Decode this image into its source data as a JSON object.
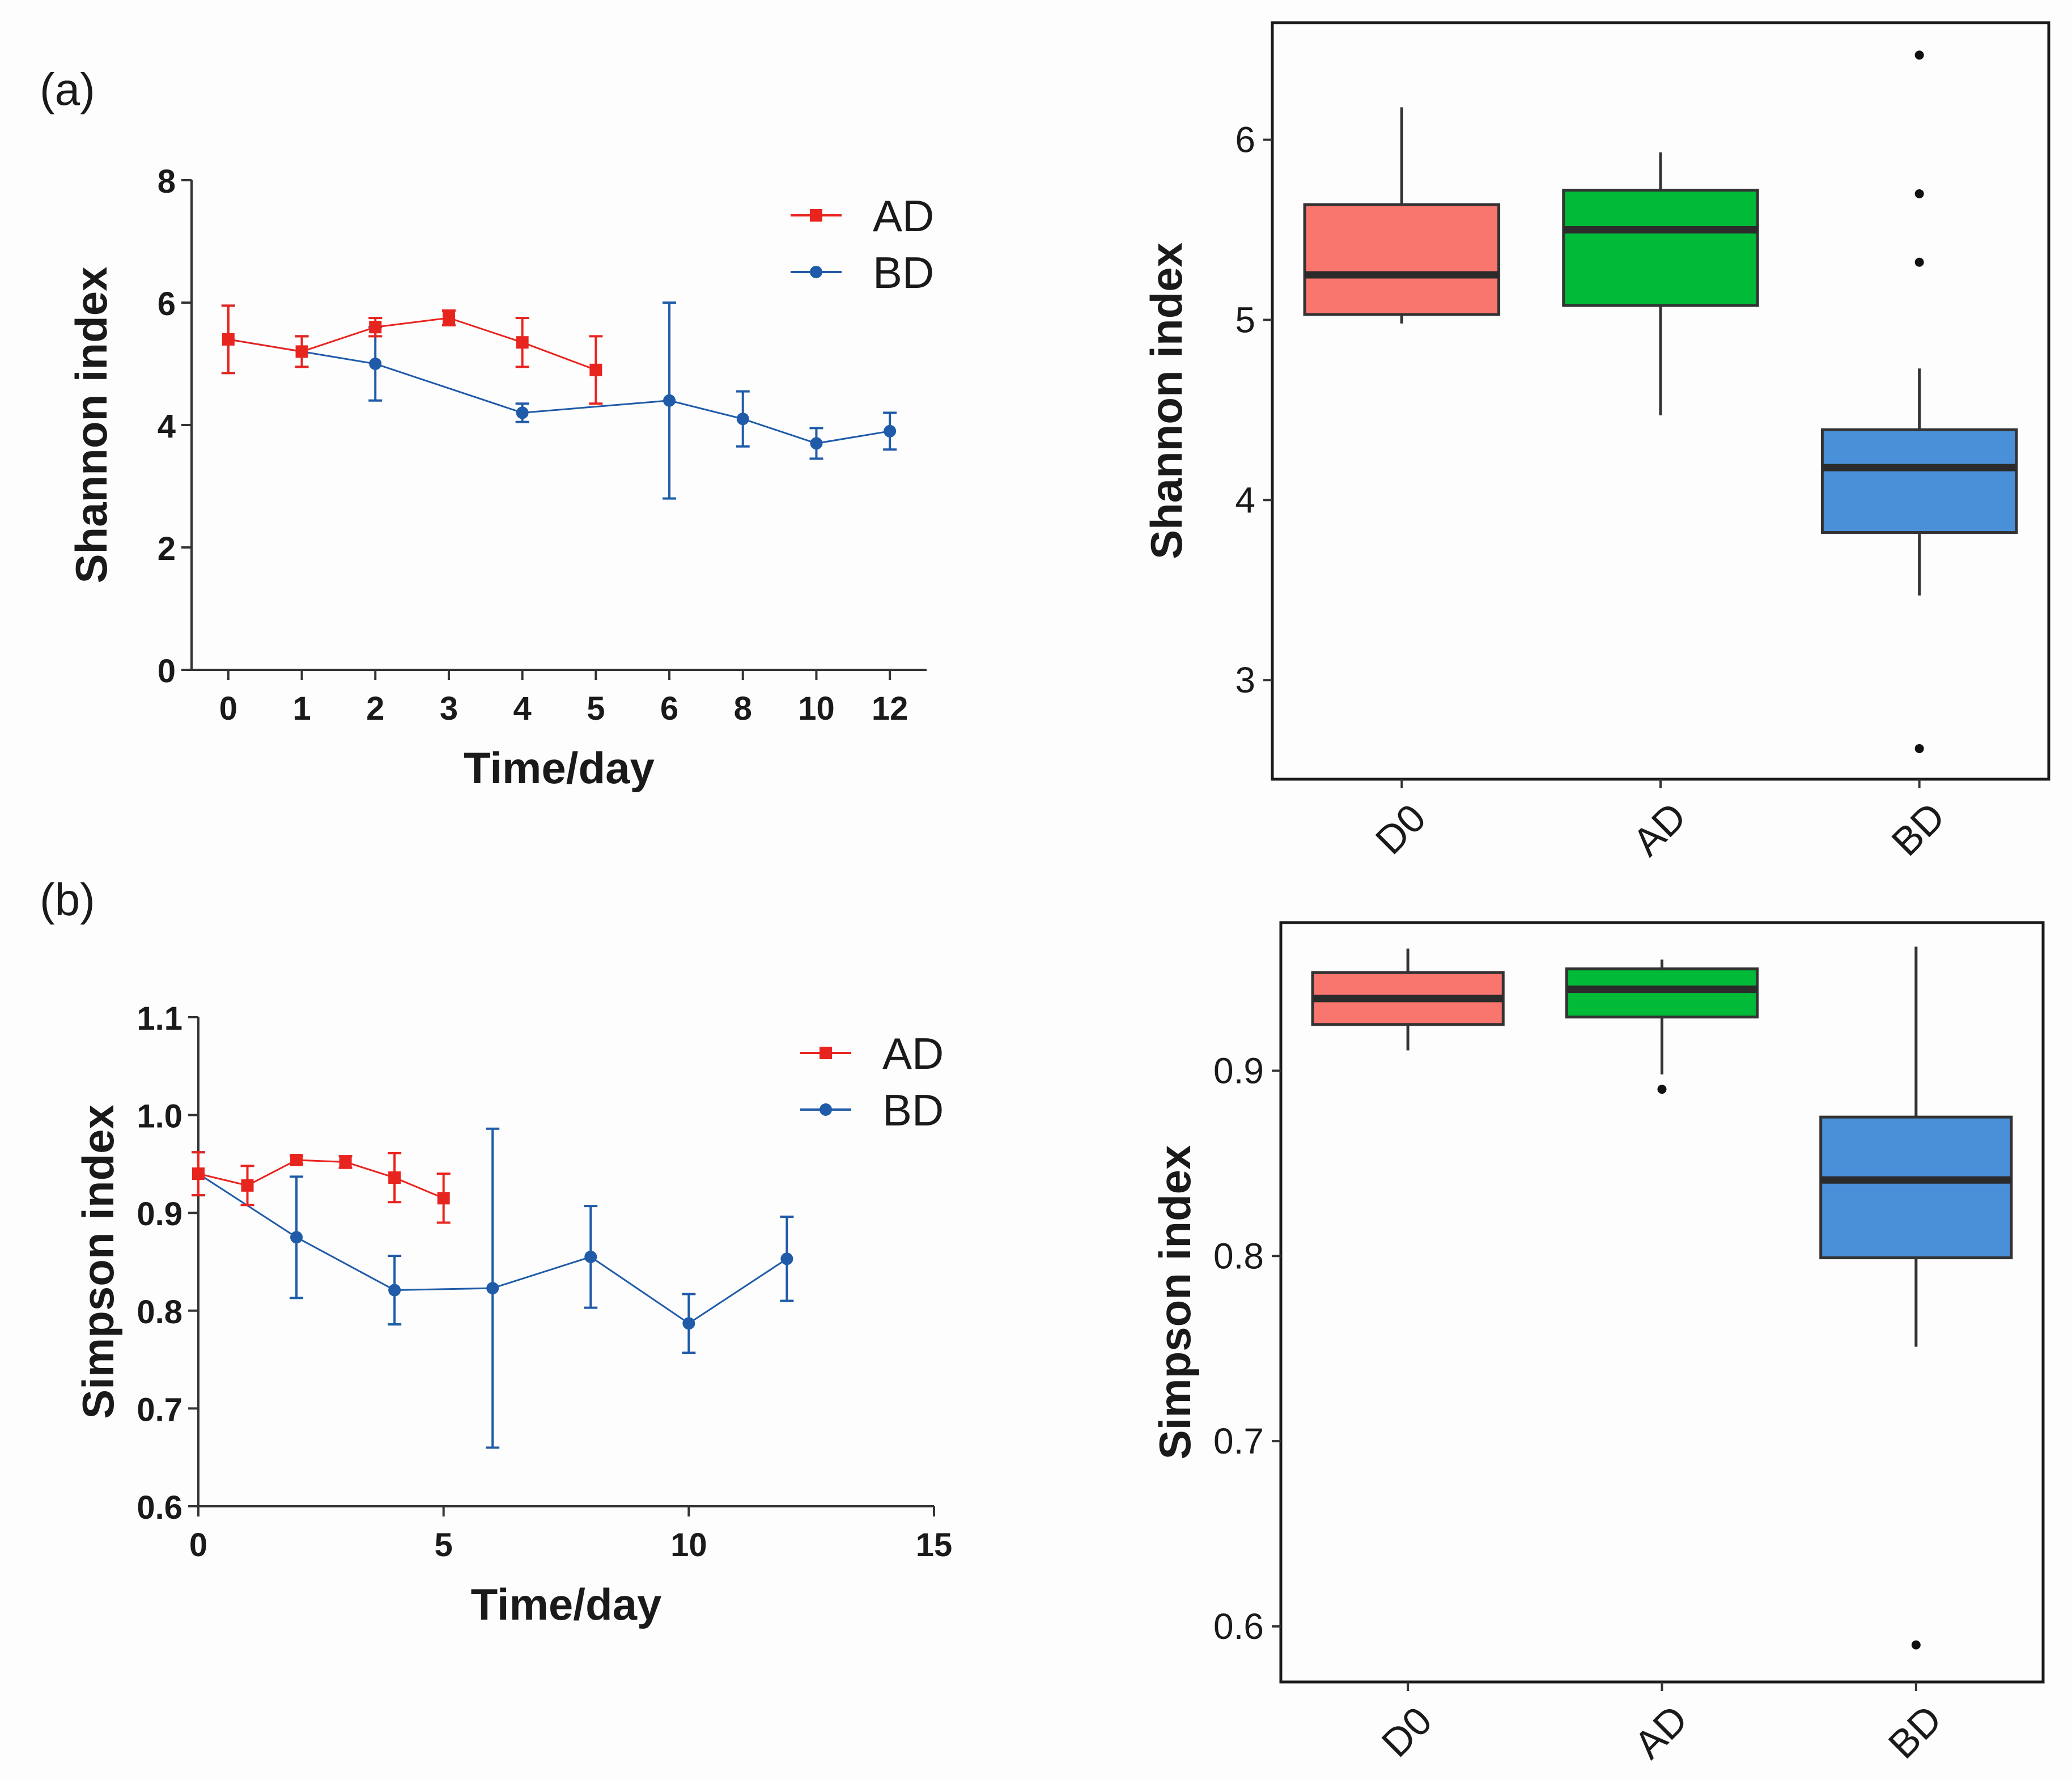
{
  "panel_labels": {
    "a": "(a)",
    "b": "(b)"
  },
  "colors": {
    "AD": "#e8241f",
    "BD": "#1f5ba8",
    "D0_box": "#f8766d",
    "AD_box": "#00ba38",
    "BD_box": "#4a90d9"
  },
  "chart_data": [
    {
      "type": "line",
      "title": "",
      "xlabel": "Time/day",
      "ylabel": "Shannon index",
      "x_tick_labels": [
        "0",
        "1",
        "2",
        "3",
        "4",
        "5",
        "6",
        "8",
        "10",
        "12"
      ],
      "y_ticks": [
        "0",
        "2",
        "4",
        "6",
        "8"
      ],
      "ylim": [
        0,
        8
      ],
      "legend": [
        "AD",
        "BD"
      ],
      "legend_position": "top-right",
      "series": [
        {
          "name": "AD",
          "marker": "square",
          "x": [
            0,
            1,
            2,
            3,
            4,
            5
          ],
          "values": [
            5.4,
            5.2,
            5.6,
            5.75,
            5.35,
            4.9
          ],
          "err": [
            0.55,
            0.25,
            0.15,
            0.12,
            0.4,
            0.55
          ]
        },
        {
          "name": "BD",
          "marker": "circle",
          "x": [
            0,
            1,
            2,
            4,
            6,
            8,
            10,
            12
          ],
          "values": [
            5.4,
            5.2,
            5.0,
            4.2,
            4.4,
            4.1,
            3.7,
            3.9
          ],
          "err": [
            0.55,
            0.25,
            0.6,
            0.15,
            1.6,
            0.45,
            0.25,
            0.3
          ]
        }
      ]
    },
    {
      "type": "box",
      "title": "",
      "xlabel": "",
      "ylabel": "Shannon index",
      "categories": [
        "D0",
        "AD",
        "BD"
      ],
      "y_ticks": [
        "3",
        "4",
        "5",
        "6"
      ],
      "ylim": [
        2.45,
        6.65
      ],
      "boxes": [
        {
          "name": "D0",
          "whisker_low": 4.98,
          "q1": 5.03,
          "median": 5.25,
          "q3": 5.64,
          "whisker_high": 6.18,
          "outliers": []
        },
        {
          "name": "AD",
          "whisker_low": 4.47,
          "q1": 5.08,
          "median": 5.5,
          "q3": 5.72,
          "whisker_high": 5.93,
          "outliers": []
        },
        {
          "name": "BD",
          "whisker_low": 3.47,
          "q1": 3.82,
          "median": 4.18,
          "q3": 4.39,
          "whisker_high": 4.73,
          "outliers": [
            6.47,
            5.7,
            5.32,
            2.62
          ]
        }
      ]
    },
    {
      "type": "line",
      "title": "",
      "xlabel": "Time/day",
      "ylabel": "Simpson index",
      "x_ticks": [
        "0",
        "5",
        "10",
        "15"
      ],
      "xlim": [
        0,
        15
      ],
      "y_ticks": [
        "0.6",
        "0.7",
        "0.8",
        "0.9",
        "1.0",
        "1.1"
      ],
      "ylim": [
        0.6,
        1.1
      ],
      "legend": [
        "AD",
        "BD"
      ],
      "legend_position": "top-right",
      "series": [
        {
          "name": "AD",
          "marker": "square",
          "x": [
            0,
            1,
            2,
            3,
            4,
            5
          ],
          "values": [
            0.94,
            0.928,
            0.954,
            0.952,
            0.936,
            0.915
          ],
          "err": [
            0.022,
            0.02,
            0.004,
            0.006,
            0.025,
            0.025
          ]
        },
        {
          "name": "BD",
          "marker": "circle",
          "x": [
            0,
            2,
            4,
            6,
            8,
            10,
            12
          ],
          "values": [
            0.94,
            0.875,
            0.821,
            0.823,
            0.855,
            0.787,
            0.853
          ],
          "err": [
            0.022,
            0.062,
            0.035,
            0.163,
            0.052,
            0.03,
            0.043
          ]
        }
      ]
    },
    {
      "type": "box",
      "title": "",
      "xlabel": "",
      "ylabel": "Simpson index",
      "categories": [
        "D0",
        "AD",
        "BD"
      ],
      "y_ticks": [
        "0.6",
        "0.7",
        "0.8",
        "0.9"
      ],
      "ylim": [
        0.57,
        0.98
      ],
      "boxes": [
        {
          "name": "D0",
          "whisker_low": 0.911,
          "q1": 0.925,
          "median": 0.939,
          "q3": 0.953,
          "whisker_high": 0.966,
          "outliers": []
        },
        {
          "name": "AD",
          "whisker_low": 0.898,
          "q1": 0.929,
          "median": 0.944,
          "q3": 0.955,
          "whisker_high": 0.96,
          "outliers": [
            0.89
          ]
        },
        {
          "name": "BD",
          "whisker_low": 0.751,
          "q1": 0.799,
          "median": 0.841,
          "q3": 0.875,
          "whisker_high": 0.967,
          "outliers": [
            0.59
          ]
        }
      ]
    }
  ]
}
